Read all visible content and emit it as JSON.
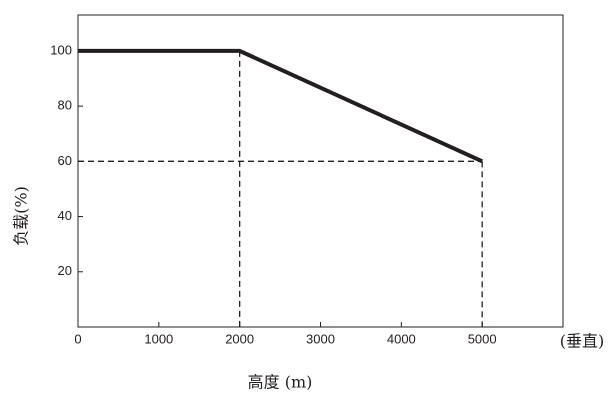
{
  "chart_data": {
    "type": "line",
    "x_label": "高度 (m)",
    "y_label": "负载(%)",
    "x_note": "(垂直)",
    "x": [
      0,
      2000,
      5000
    ],
    "values": [
      100,
      100,
      60
    ],
    "color": "#231f20",
    "xlim": [
      0,
      6000
    ],
    "xticks": [
      0,
      1000,
      2000,
      3000,
      4000,
      5000
    ],
    "ylim": [
      0,
      113
    ],
    "yticks": [
      20,
      40,
      60,
      80,
      100
    ],
    "guides": true
  }
}
